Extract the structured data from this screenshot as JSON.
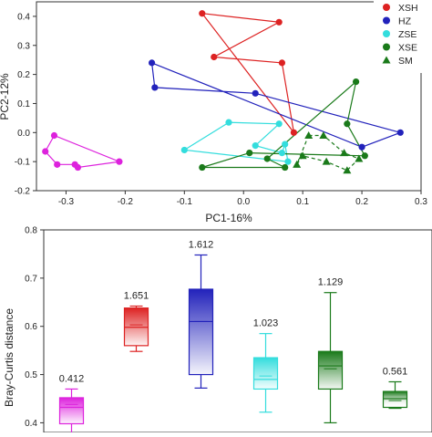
{
  "chart_data": [
    {
      "type": "scatter",
      "xlabel": "PC1-16%",
      "ylabel": "PC2-12%",
      "xlim": [
        -0.35,
        0.3
      ],
      "ylim": [
        -0.2,
        0.45
      ],
      "xticks": [
        "-0.3",
        "-0.2",
        "-0.1",
        "0.0",
        "0.1",
        "0.2",
        "0.3"
      ],
      "yticks": [
        "-0.2",
        "-0.1",
        "0.0",
        "0.1",
        "0.2",
        "0.3",
        "0.4"
      ],
      "legend_position": "top-right",
      "series": [
        {
          "name": "XSH",
          "color": "#dd2222",
          "marker": "circle",
          "hull": "solid",
          "points": [
            [
              -0.07,
              0.41
            ],
            [
              0.06,
              0.38
            ],
            [
              -0.05,
              0.26
            ],
            [
              0.065,
              0.24
            ],
            [
              0.085,
              0.0
            ]
          ]
        },
        {
          "name": "HZ",
          "color": "#2222bb",
          "marker": "circle",
          "hull": "solid",
          "points": [
            [
              -0.155,
              0.24
            ],
            [
              -0.15,
              0.155
            ],
            [
              0.02,
              0.135
            ],
            [
              0.265,
              0.0
            ],
            [
              0.2,
              -0.05
            ]
          ]
        },
        {
          "name": "ZSE",
          "color": "#33dddd",
          "marker": "circle",
          "hull": "solid",
          "points": [
            [
              -0.1,
              -0.06
            ],
            [
              -0.025,
              0.035
            ],
            [
              0.06,
              0.03
            ],
            [
              0.02,
              -0.045
            ],
            [
              0.065,
              -0.07
            ],
            [
              0.07,
              -0.04
            ],
            [
              0.075,
              -0.1
            ]
          ]
        },
        {
          "name": "XSE",
          "color": "#1a7a1a",
          "marker": "circle",
          "hull": "solid",
          "points": [
            [
              0.19,
              0.175
            ],
            [
              0.175,
              0.03
            ],
            [
              0.205,
              -0.08
            ],
            [
              0.01,
              -0.07
            ],
            [
              -0.07,
              -0.12
            ],
            [
              0.07,
              -0.12
            ],
            [
              0.04,
              -0.09
            ]
          ]
        },
        {
          "name": "SM",
          "color": "#1a7a1a",
          "marker": "triangle",
          "hull": "dashed",
          "points": [
            [
              0.11,
              -0.01
            ],
            [
              0.135,
              -0.01
            ],
            [
              0.17,
              -0.07
            ],
            [
              0.195,
              -0.09
            ],
            [
              0.175,
              -0.13
            ],
            [
              0.14,
              -0.1
            ],
            [
              0.1,
              -0.08
            ],
            [
              0.09,
              -0.11
            ]
          ]
        },
        {
          "name": "",
          "color": "#dd22dd",
          "marker": "circle",
          "hull": "solid",
          "points": [
            [
              -0.32,
              -0.01
            ],
            [
              -0.335,
              -0.065
            ],
            [
              -0.315,
              -0.11
            ],
            [
              -0.285,
              -0.11
            ],
            [
              -0.28,
              -0.12
            ],
            [
              -0.21,
              -0.1
            ]
          ]
        }
      ]
    },
    {
      "type": "box",
      "ylabel": "Bray-Curtis distance",
      "ylim": [
        0.38,
        0.8
      ],
      "yticks": [
        "0.4",
        "0.5",
        "0.6",
        "0.7",
        "0.8"
      ],
      "boxes": [
        {
          "label": "0.412",
          "color": "#dd22dd",
          "whisker_low": 0.378,
          "q1": 0.398,
          "median": 0.432,
          "mean": 0.438,
          "q3": 0.452,
          "whisker_high": 0.47
        },
        {
          "label": "1.651",
          "color": "#dd2222",
          "whisker_low": 0.548,
          "q1": 0.56,
          "median": 0.598,
          "mean": 0.603,
          "q3": 0.638,
          "whisker_high": 0.642
        },
        {
          "label": "1.612",
          "color": "#2222bb",
          "whisker_low": 0.472,
          "q1": 0.5,
          "median": 0.61,
          "mean": 0.61,
          "q3": 0.677,
          "whisker_high": 0.748
        },
        {
          "label": "1.023",
          "color": "#33dddd",
          "whisker_low": 0.422,
          "q1": 0.47,
          "median": 0.49,
          "mean": 0.497,
          "q3": 0.535,
          "whisker_high": 0.585
        },
        {
          "label": "1.129",
          "color": "#1a7a1a",
          "whisker_low": 0.4,
          "q1": 0.47,
          "median": 0.518,
          "mean": 0.512,
          "q3": 0.548,
          "whisker_high": 0.67
        },
        {
          "label": "0.561",
          "color": "#1a7a1a",
          "whisker_low": 0.43,
          "q1": 0.432,
          "median": 0.45,
          "mean": 0.446,
          "q3": 0.465,
          "whisker_high": 0.485
        }
      ]
    }
  ]
}
